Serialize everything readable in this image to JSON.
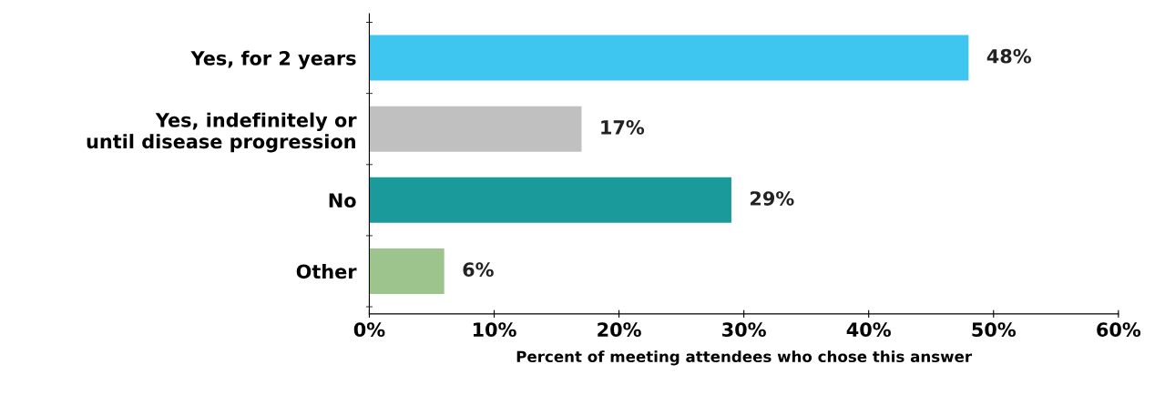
{
  "chart_data": {
    "type": "bar",
    "orientation": "horizontal",
    "xlabel": "Percent of meeting attendees who chose this answer",
    "categories": [
      "Yes, for 2 years",
      "Yes, indefinitely or\nuntil disease progression",
      "No",
      "Other"
    ],
    "values": [
      48,
      17,
      29,
      6
    ],
    "colors": [
      "#3ec5f0",
      "#c0c0c0",
      "#1a9a9a",
      "#9dc48c"
    ],
    "value_labels": [
      "48%",
      "17%",
      "29%",
      "6%"
    ],
    "xlim": [
      0,
      60
    ],
    "xticks": [
      {
        "value": 0,
        "label": "0%"
      },
      {
        "value": 10,
        "label": "10%"
      },
      {
        "value": 20,
        "label": "20%"
      },
      {
        "value": 30,
        "label": "30%"
      },
      {
        "value": 40,
        "label": "40%"
      },
      {
        "value": 50,
        "label": "50%"
      },
      {
        "value": 60,
        "label": "60%"
      }
    ],
    "grid": false,
    "legend": false
  }
}
